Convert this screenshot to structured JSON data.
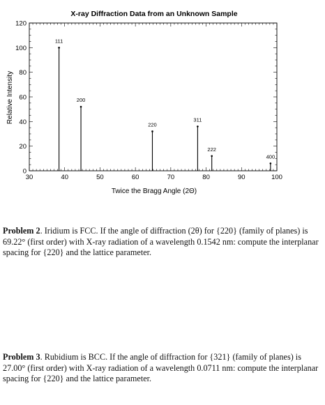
{
  "chart_data": {
    "type": "stem",
    "title": "X-ray Diffraction Data from an Unknown Sample",
    "xlabel": "Twice the Bragg Angle (2Θ)",
    "ylabel": "Relative Intensity",
    "xlim": [
      30,
      100
    ],
    "ylim": [
      0,
      120
    ],
    "xticks": [
      30,
      40,
      50,
      60,
      70,
      80,
      90,
      100
    ],
    "yticks": [
      0,
      20,
      40,
      60,
      80,
      100,
      120
    ],
    "peaks": [
      {
        "label": "111",
        "x": 38.4,
        "y": 100
      },
      {
        "label": "200",
        "x": 44.6,
        "y": 52
      },
      {
        "label": "220",
        "x": 64.8,
        "y": 32
      },
      {
        "label": "311",
        "x": 77.6,
        "y": 36
      },
      {
        "label": "222",
        "x": 81.6,
        "y": 12
      },
      {
        "label": "400",
        "x": 98.2,
        "y": 6
      }
    ],
    "grid": false,
    "legend": "none"
  },
  "problems": [
    {
      "heading": "Problem 2",
      "text": ". Iridium is FCC. If the angle of diffraction (2θ) for {220} (family of planes) is 69.22° (first order) with X-ray radiation of a wavelength 0.1542 nm: compute the interplanar spacing for {220} and the lattice parameter."
    },
    {
      "heading": "Problem 3",
      "text": ". Rubidium is BCC. If the angle of diffraction for {321} (family of planes) is 27.00° (first order) with X-ray radiation of a wavelength 0.0711 nm: compute the interplanar spacing for {220} and the lattice parameter."
    }
  ]
}
